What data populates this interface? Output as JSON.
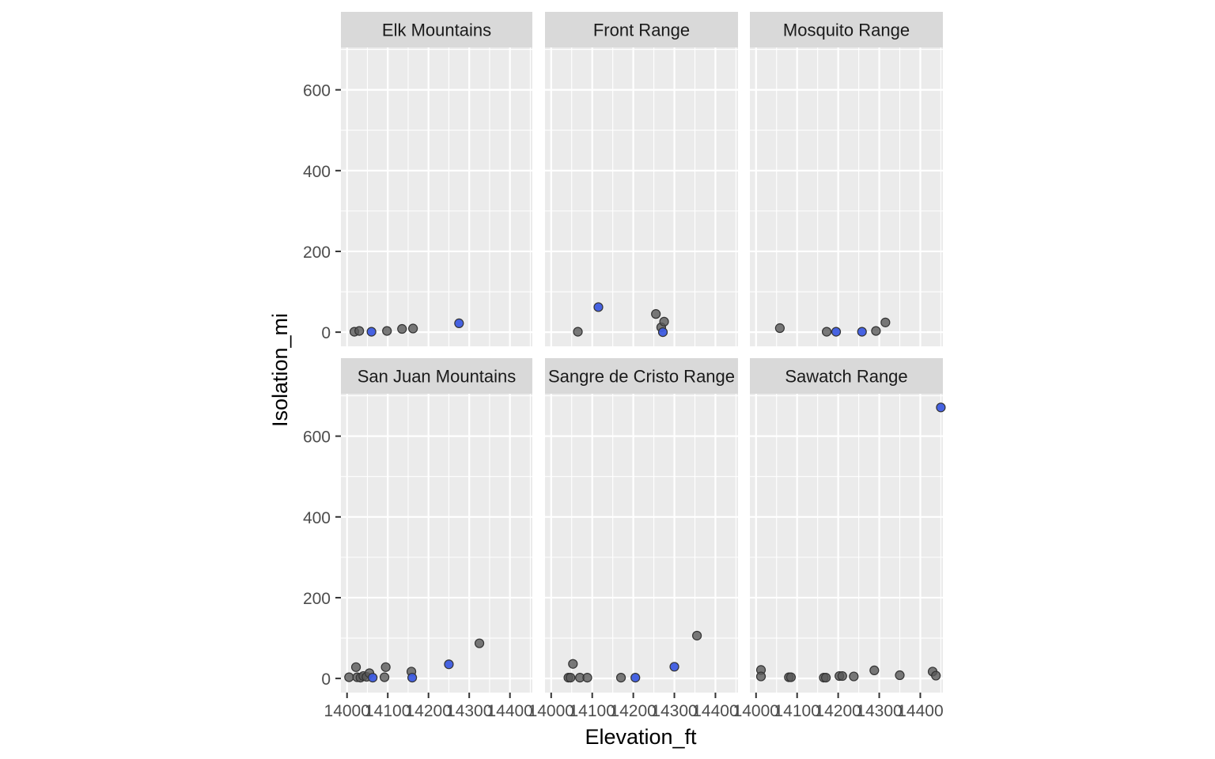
{
  "chart_data": {
    "type": "scatter",
    "xlabel": "Elevation_ft",
    "ylabel": "Isolation_mi",
    "xlim": [
      13985,
      14455
    ],
    "ylim": [
      -35,
      705
    ],
    "x_ticks": [
      14000,
      14100,
      14200,
      14300,
      14400
    ],
    "x_tick_labels": [
      "14000",
      "14100",
      "14200",
      "14300",
      "14400"
    ],
    "y_ticks": [
      0,
      200,
      400,
      600
    ],
    "y_tick_labels": [
      "0",
      "200",
      "400",
      "600"
    ],
    "grid": true,
    "colors": {
      "panel_bg": "#EBEBEB",
      "grid": "#FFFFFF",
      "strip_bg": "#D9D9D9",
      "point_fill": "#595959",
      "point_highlight": "#3D5BE0",
      "point_stroke": "#333333"
    },
    "panels": [
      {
        "title": "Elk Mountains",
        "points": [
          {
            "x": 14018,
            "y": 1,
            "hl": false
          },
          {
            "x": 14030,
            "y": 3,
            "hl": false
          },
          {
            "x": 14060,
            "y": 1,
            "hl": true
          },
          {
            "x": 14098,
            "y": 3,
            "hl": false
          },
          {
            "x": 14135,
            "y": 8,
            "hl": false
          },
          {
            "x": 14162,
            "y": 9,
            "hl": false
          },
          {
            "x": 14275,
            "y": 22,
            "hl": true
          }
        ]
      },
      {
        "title": "Front Range",
        "points": [
          {
            "x": 14065,
            "y": 1,
            "hl": false
          },
          {
            "x": 14115,
            "y": 62,
            "hl": true
          },
          {
            "x": 14255,
            "y": 45,
            "hl": false
          },
          {
            "x": 14268,
            "y": 12,
            "hl": false
          },
          {
            "x": 14275,
            "y": 26,
            "hl": false
          },
          {
            "x": 14272,
            "y": 0,
            "hl": true
          }
        ]
      },
      {
        "title": "Mosquito Range",
        "points": [
          {
            "x": 14058,
            "y": 10,
            "hl": false
          },
          {
            "x": 14172,
            "y": 1,
            "hl": false
          },
          {
            "x": 14195,
            "y": 1,
            "hl": true
          },
          {
            "x": 14258,
            "y": 1,
            "hl": true
          },
          {
            "x": 14292,
            "y": 3,
            "hl": false
          },
          {
            "x": 14315,
            "y": 24,
            "hl": false
          }
        ]
      },
      {
        "title": "San Juan Mountains",
        "points": [
          {
            "x": 14005,
            "y": 3,
            "hl": false
          },
          {
            "x": 14022,
            "y": 28,
            "hl": false
          },
          {
            "x": 14025,
            "y": 3,
            "hl": false
          },
          {
            "x": 14033,
            "y": 2,
            "hl": false
          },
          {
            "x": 14040,
            "y": 6,
            "hl": false
          },
          {
            "x": 14048,
            "y": 4,
            "hl": false
          },
          {
            "x": 14055,
            "y": 13,
            "hl": false
          },
          {
            "x": 14063,
            "y": 2,
            "hl": true
          },
          {
            "x": 14095,
            "y": 28,
            "hl": false
          },
          {
            "x": 14092,
            "y": 3,
            "hl": false
          },
          {
            "x": 14158,
            "y": 17,
            "hl": false
          },
          {
            "x": 14160,
            "y": 2,
            "hl": true
          },
          {
            "x": 14250,
            "y": 35,
            "hl": true
          },
          {
            "x": 14325,
            "y": 87,
            "hl": false
          }
        ]
      },
      {
        "title": "Sangre de Cristo Range",
        "points": [
          {
            "x": 14042,
            "y": 2,
            "hl": false
          },
          {
            "x": 14047,
            "y": 2,
            "hl": false
          },
          {
            "x": 14053,
            "y": 36,
            "hl": false
          },
          {
            "x": 14070,
            "y": 2,
            "hl": false
          },
          {
            "x": 14088,
            "y": 2,
            "hl": false
          },
          {
            "x": 14170,
            "y": 2,
            "hl": false
          },
          {
            "x": 14205,
            "y": 2,
            "hl": true
          },
          {
            "x": 14300,
            "y": 29,
            "hl": true
          },
          {
            "x": 14355,
            "y": 106,
            "hl": false
          }
        ]
      },
      {
        "title": "Sawatch Range",
        "points": [
          {
            "x": 14012,
            "y": 21,
            "hl": false
          },
          {
            "x": 14012,
            "y": 5,
            "hl": false
          },
          {
            "x": 14080,
            "y": 3,
            "hl": false
          },
          {
            "x": 14085,
            "y": 3,
            "hl": false
          },
          {
            "x": 14165,
            "y": 2,
            "hl": false
          },
          {
            "x": 14170,
            "y": 2,
            "hl": false
          },
          {
            "x": 14203,
            "y": 6,
            "hl": false
          },
          {
            "x": 14210,
            "y": 6,
            "hl": false
          },
          {
            "x": 14238,
            "y": 5,
            "hl": false
          },
          {
            "x": 14288,
            "y": 20,
            "hl": false
          },
          {
            "x": 14350,
            "y": 8,
            "hl": false
          },
          {
            "x": 14430,
            "y": 17,
            "hl": false
          },
          {
            "x": 14438,
            "y": 7,
            "hl": false
          },
          {
            "x": 14450,
            "y": 671,
            "hl": true
          }
        ]
      }
    ]
  }
}
